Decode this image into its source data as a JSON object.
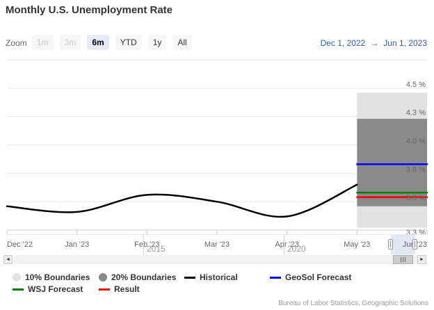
{
  "title": "Monthly U.S. Unemployment Rate",
  "toolbar": {
    "zoom_label": "Zoom",
    "buttons": [
      {
        "label": "1m",
        "state": "disabled"
      },
      {
        "label": "3m",
        "state": "disabled"
      },
      {
        "label": "6m",
        "state": "selected"
      },
      {
        "label": "YTD",
        "state": "normal"
      },
      {
        "label": "1y",
        "state": "normal"
      },
      {
        "label": "All",
        "state": "normal"
      }
    ],
    "range": {
      "from": "Dec 1, 2022",
      "arrow": "→",
      "to": "Jun 1, 2023"
    }
  },
  "chart_data": {
    "type": "line",
    "title": "Monthly U.S. Unemployment Rate",
    "xlabel": "",
    "ylabel": "",
    "grid": true,
    "ylim": [
      3.25,
      4.75
    ],
    "y_axis": {
      "tick_labels": [
        "4.5 %",
        "4.3 %",
        "4.0 %",
        "3.8 %",
        "3.5 %",
        "3.3 %"
      ],
      "tick_values": [
        4.5,
        4.25,
        4.0,
        3.75,
        3.5,
        3.25
      ],
      "extra_gridlines": [
        4.75
      ]
    },
    "x_axis": {
      "tick_labels": [
        "Dec '22",
        "Jan '23",
        "Feb '23",
        "Mar '23",
        "Apr '23",
        "May '23",
        "Jun '23"
      ]
    },
    "series": [
      {
        "name": "10% Boundaries",
        "type": "band",
        "color": "#e2e2e2",
        "x_idx": [
          5,
          6
        ],
        "low": 3.27,
        "high": 4.46
      },
      {
        "name": "20% Boundaries",
        "type": "band",
        "color": "#8a8a8a",
        "x_idx": [
          5,
          6
        ],
        "low": 3.46,
        "high": 4.23
      },
      {
        "name": "GeoSol Forecast",
        "type": "line",
        "color": "#0000ff",
        "width": 2.5,
        "x_idx": [
          5,
          6
        ],
        "values": [
          3.83,
          3.83
        ]
      },
      {
        "name": "WSJ Forecast",
        "type": "line",
        "color": "#008000",
        "width": 2.5,
        "x_idx": [
          5,
          6
        ],
        "values": [
          3.58,
          3.58
        ]
      },
      {
        "name": "Result",
        "type": "line",
        "color": "#ff0000",
        "width": 2.5,
        "x_idx": [
          5,
          6
        ],
        "values": [
          3.54,
          3.54
        ]
      },
      {
        "name": "Historical",
        "type": "spline",
        "color": "#000000",
        "width": 2.5,
        "x_idx": [
          0,
          1,
          2,
          3,
          4,
          5
        ],
        "values": [
          3.46,
          3.41,
          3.56,
          3.5,
          3.37,
          3.65
        ]
      }
    ],
    "legend_position": "bottom-left"
  },
  "navigator": {
    "years": [
      "2015",
      "2020"
    ]
  },
  "scrollbar": {
    "left_arrow": "◄",
    "right_arrow": "►"
  },
  "legend": {
    "rows": [
      [
        {
          "label": "10% Boundaries",
          "marker": "circle",
          "color": "#e2e2e2"
        },
        {
          "label": "20% Boundaries",
          "marker": "circle",
          "color": "#8a8a8a"
        },
        {
          "label": "Historical",
          "marker": "line",
          "color": "#000000"
        },
        {
          "label": "GeoSol Forecast",
          "marker": "line",
          "color": "#0000ff"
        }
      ],
      [
        {
          "label": "WSJ Forecast",
          "marker": "line",
          "color": "#008000"
        },
        {
          "label": "Result",
          "marker": "line",
          "color": "#ff0000"
        }
      ]
    ]
  },
  "credits": "Bureau of Labor Statistics, Geographic Solutions",
  "colors": {
    "accent_blue": "#335cad",
    "selected_button_bg": "#e6ebf7",
    "grid": "#e6e6e6",
    "axis_line": "#cccccc",
    "axis_label": "#666666",
    "band_light": "#e2e2e2",
    "band_dark": "#8a8a8a",
    "historical": "#000000",
    "geosol_forecast": "#0000ff",
    "wsj_forecast": "#008000",
    "result": "#ff0000"
  }
}
